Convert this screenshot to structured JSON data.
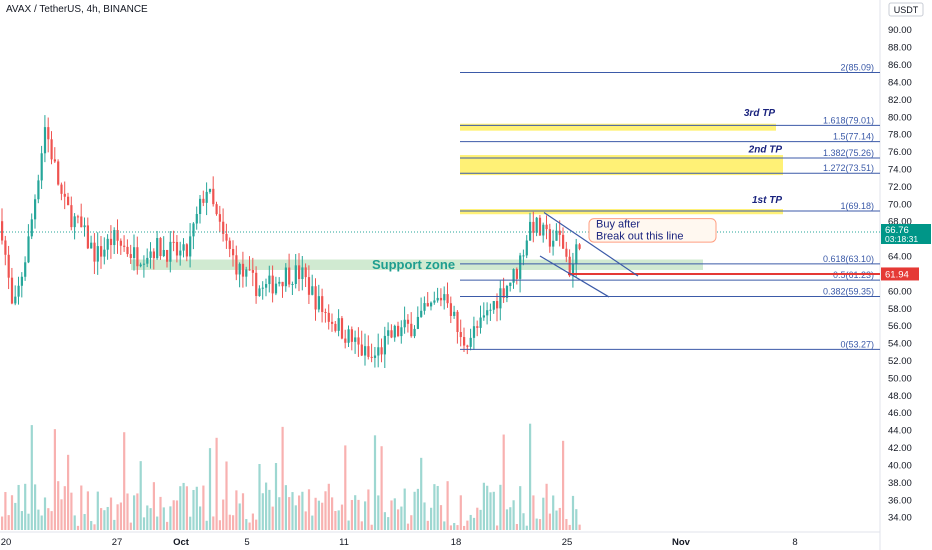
{
  "header": {
    "title": "AVAX / TetherUS, 4h, BINANCE"
  },
  "price_axis": {
    "currency": "USDT",
    "current_price": "66.76",
    "countdown": "03:18:31",
    "marker_price": "61.94",
    "ticks": [
      "90.00",
      "88.00",
      "86.00",
      "84.00",
      "82.00",
      "80.00",
      "78.00",
      "76.00",
      "74.00",
      "72.00",
      "70.00",
      "68.00",
      "66.00",
      "64.00",
      "62.00",
      "60.00",
      "58.00",
      "56.00",
      "54.00",
      "52.00",
      "50.00",
      "48.00",
      "46.00",
      "44.00",
      "42.00",
      "40.00",
      "38.00",
      "36.00",
      "34.00"
    ]
  },
  "time_axis": {
    "labels": [
      "20",
      "27",
      "Oct",
      "5",
      "11",
      "18",
      "25",
      "Nov",
      "8"
    ]
  },
  "fib_levels": [
    {
      "label": "2(85.09)",
      "value": 85.09
    },
    {
      "label": "1.618(79.01)",
      "value": 79.01
    },
    {
      "label": "1.5(77.14)",
      "value": 77.14
    },
    {
      "label": "1.382(75.26)",
      "value": 75.26
    },
    {
      "label": "1.272(73.51)",
      "value": 73.51
    },
    {
      "label": "1(69.18)",
      "value": 69.18
    },
    {
      "label": "0.618(63.10)",
      "value": 63.1
    },
    {
      "label": "0.5(61.23)",
      "value": 61.23
    },
    {
      "label": "0.382(59.35)",
      "value": 59.35
    },
    {
      "label": "0(53.27)",
      "value": 53.27
    }
  ],
  "annotations": {
    "tp3": "3rd TP",
    "tp2": "2nd TP",
    "tp1": "1st TP",
    "support": "Support zone",
    "buy_line1": "Buy after",
    "buy_line2": "Break out this line"
  },
  "colors": {
    "up": "#26a69a",
    "down": "#ef5350",
    "fib": "#3b5aa8",
    "highlight": "#fff176",
    "support": "#c8e6c9",
    "marker": "#e53935",
    "price_tag": "#009688"
  },
  "chart_data": {
    "type": "candlestick",
    "title": "AVAX / TetherUS, 4h, BINANCE",
    "ylim": [
      33,
      92
    ],
    "x_tick_labels": [
      "20",
      "27",
      "Oct",
      "5",
      "11",
      "18",
      "25",
      "Nov",
      "8"
    ],
    "key_points": [
      {
        "t": "20",
        "close": 68
      },
      {
        "t": "22",
        "close": 57
      },
      {
        "t": "24",
        "close": 79
      },
      {
        "t": "26",
        "close": 70
      },
      {
        "t": "27",
        "close": 66
      },
      {
        "t": "29",
        "close": 64
      },
      {
        "t": "Oct",
        "close": 65
      },
      {
        "t": "3",
        "close": 64
      },
      {
        "t": "4",
        "close": 72
      },
      {
        "t": "6",
        "close": 62
      },
      {
        "t": "8",
        "close": 62
      },
      {
        "t": "10",
        "close": 56
      },
      {
        "t": "12",
        "close": 52
      },
      {
        "t": "15",
        "close": 56
      },
      {
        "t": "17",
        "close": 58
      },
      {
        "t": "18",
        "close": 54
      },
      {
        "t": "20",
        "close": 56
      },
      {
        "t": "21",
        "close": 60
      },
      {
        "t": "22",
        "close": 68
      },
      {
        "t": "24",
        "close": 66
      },
      {
        "t": "25",
        "close": 62
      },
      {
        "t": "26",
        "close": 66.76
      }
    ],
    "last_price": 66.76,
    "volume": "bars at the bottom, in the candle colours"
  }
}
